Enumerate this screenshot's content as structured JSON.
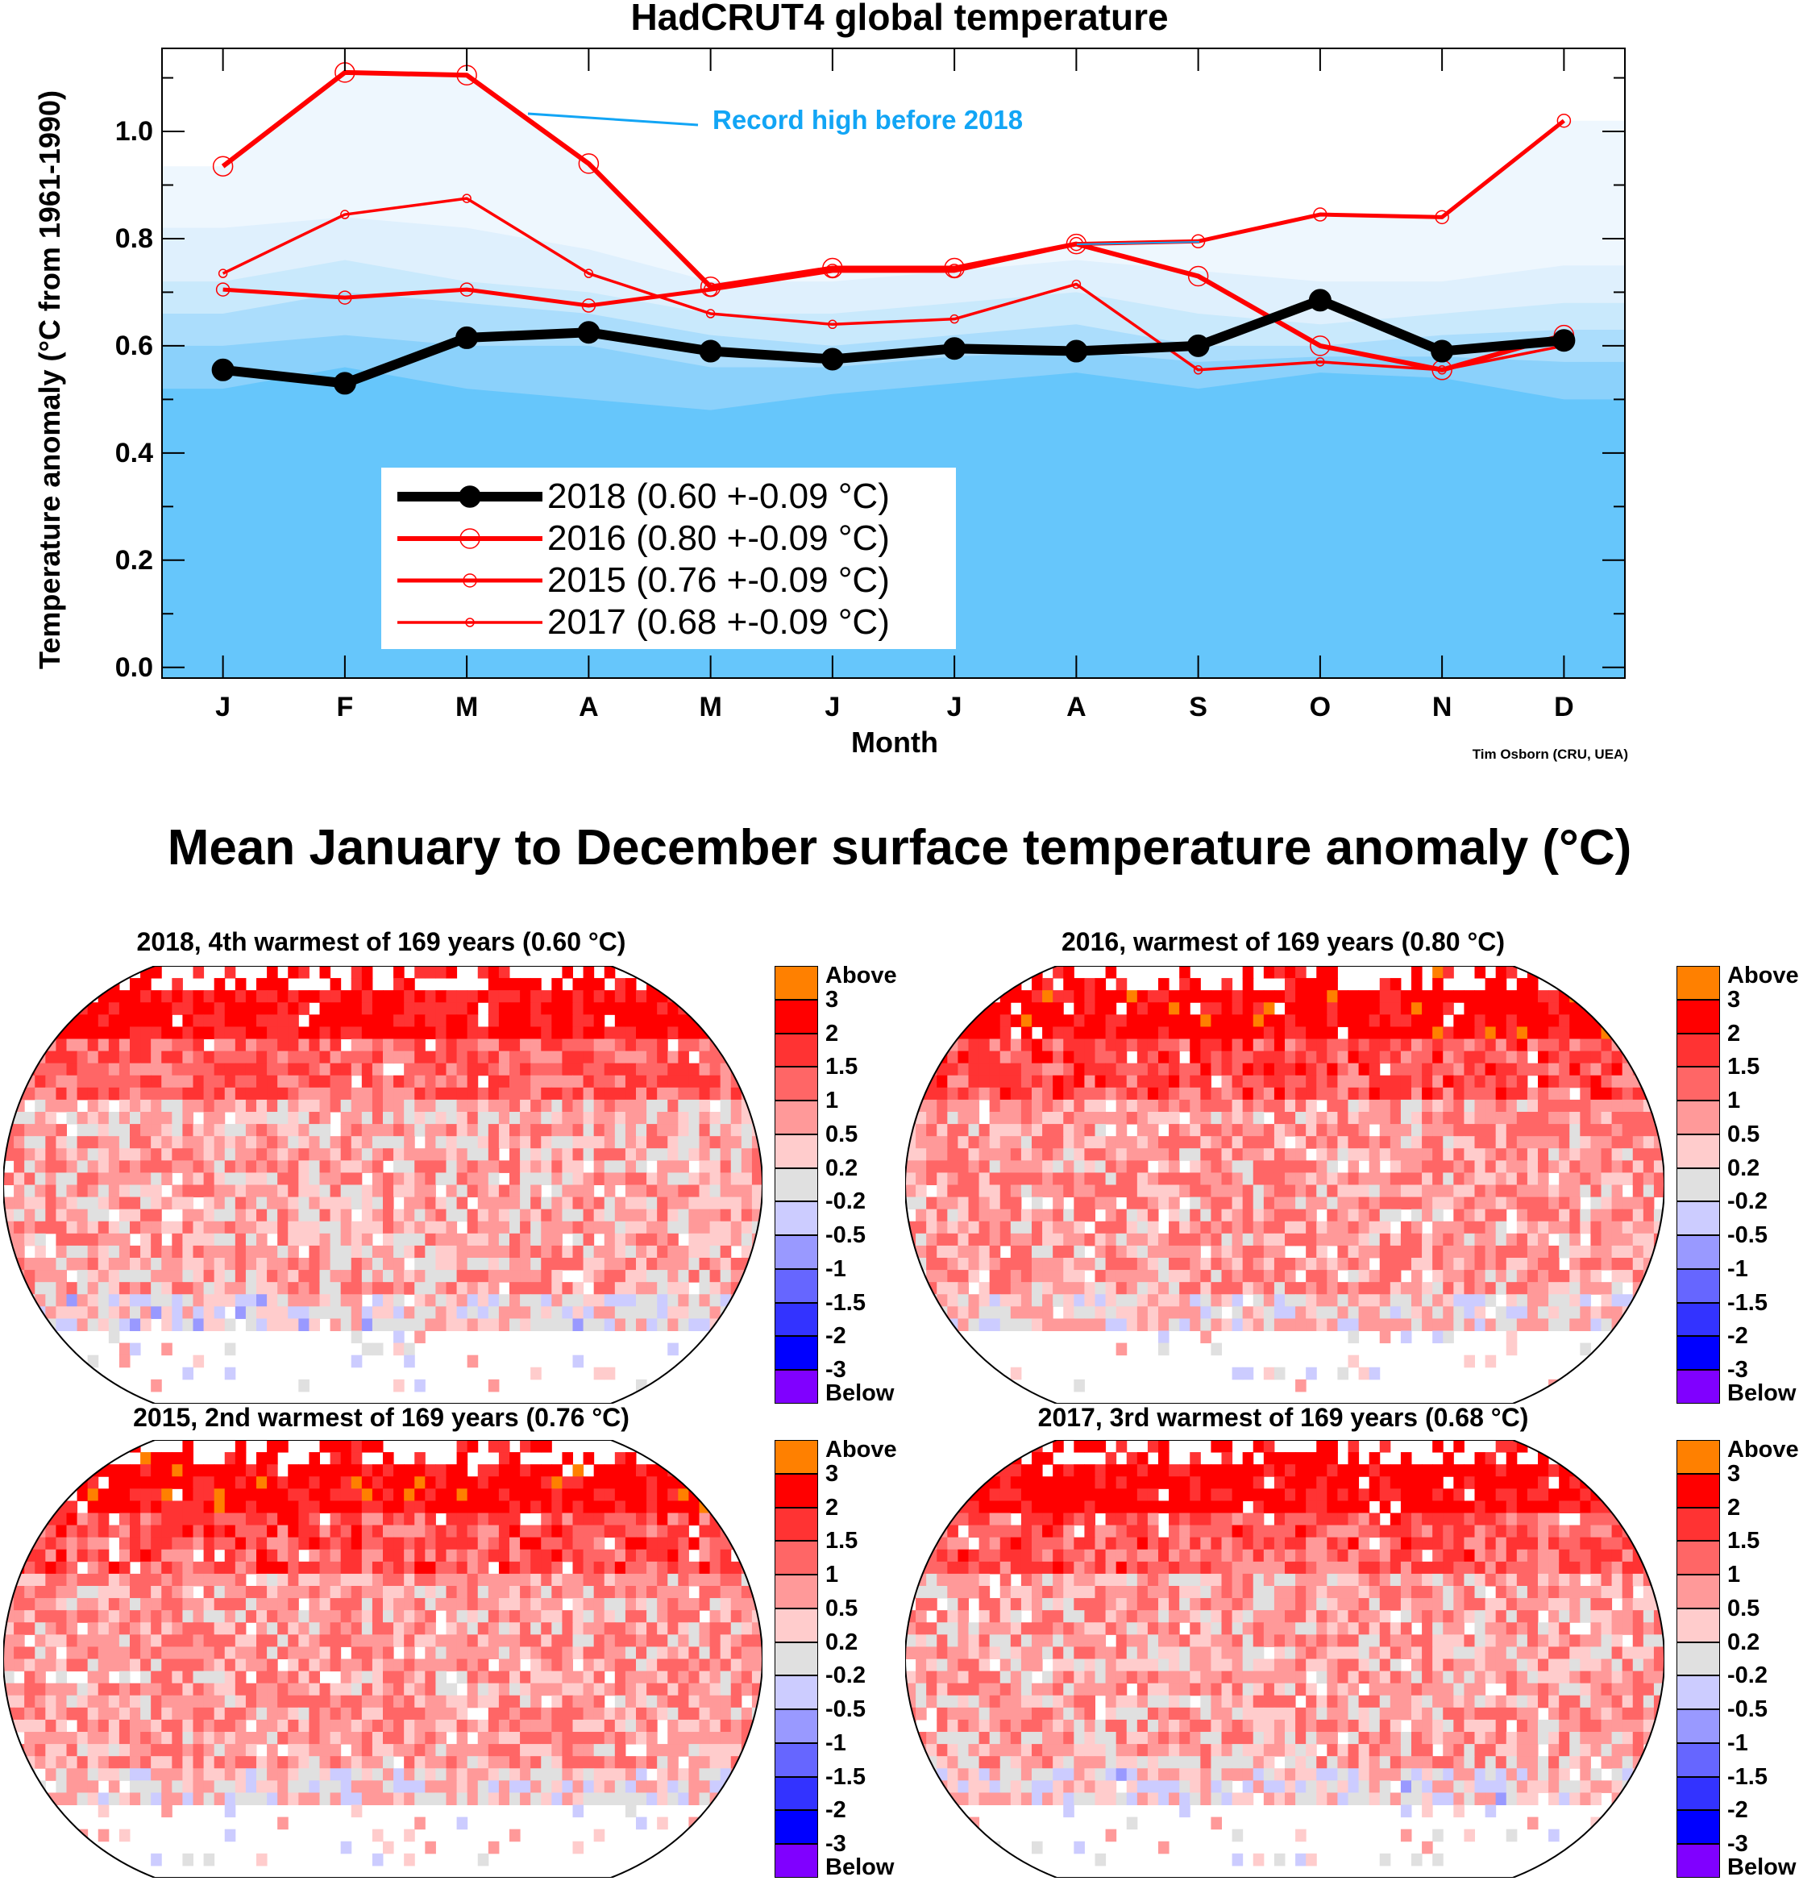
{
  "chart_data": {
    "type": "line",
    "title": "HadCRUT4 global temperature",
    "xlabel": "Month",
    "ylabel": "Temperature anomaly (°C from 1961-1990)",
    "ylim": [
      -0.02,
      1.155
    ],
    "xlim": [
      0.5,
      12.5
    ],
    "x_tick_labels": [
      "J",
      "F",
      "M",
      "A",
      "M",
      "J",
      "J",
      "A",
      "S",
      "O",
      "N",
      "D"
    ],
    "y_ticks": [
      0.0,
      0.2,
      0.4,
      0.6,
      0.8,
      1.0
    ],
    "y_tick_labels": [
      "0.0",
      "0.2",
      "0.4",
      "0.6",
      "0.8",
      "1.0"
    ],
    "credit": "Tim Osborn (CRU, UEA)",
    "annotation": "Record high before 2018",
    "legend_placement": "lower-left",
    "series": [
      {
        "name": "2018",
        "label": "2018 (0.60 +-0.09 °C)",
        "color": "#000000",
        "marker": "filled-circle",
        "values": [
          0.555,
          0.53,
          0.615,
          0.625,
          0.59,
          0.575,
          0.595,
          0.59,
          0.6,
          0.685,
          0.59,
          0.61
        ]
      },
      {
        "name": "2016",
        "label": "2016 (0.80 +-0.09 °C)",
        "color": "#ff0000",
        "marker": "open-circle-large",
        "values": [
          0.935,
          1.11,
          1.105,
          0.94,
          0.71,
          0.745,
          0.745,
          0.79,
          0.73,
          0.6,
          0.555,
          0.62
        ]
      },
      {
        "name": "2015",
        "label": "2015 (0.76 +-0.09 °C)",
        "color": "#ff0000",
        "marker": "open-circle-medium",
        "values": [
          0.705,
          0.69,
          0.705,
          0.675,
          0.705,
          0.74,
          0.74,
          0.79,
          0.795,
          0.845,
          0.84,
          1.02
        ]
      },
      {
        "name": "2017",
        "label": "2017 (0.68 +-0.09 °C)",
        "color": "#ff0000",
        "marker": "open-circle-small",
        "values": [
          0.735,
          0.845,
          0.875,
          0.735,
          0.66,
          0.64,
          0.65,
          0.715,
          0.555,
          0.57,
          0.555,
          0.6
        ]
      }
    ],
    "shading_bands": [
      {
        "name": "record-high-before-2018",
        "color": "#eef7fe",
        "values": [
          0.935,
          1.11,
          1.105,
          0.94,
          0.71,
          0.745,
          0.745,
          0.79,
          0.795,
          0.845,
          0.84,
          1.02
        ]
      },
      {
        "name": "band-2",
        "color": "#dff0fd",
        "values": [
          0.82,
          0.84,
          0.82,
          0.78,
          0.72,
          0.72,
          0.74,
          0.76,
          0.74,
          0.72,
          0.72,
          0.75
        ]
      },
      {
        "name": "band-3",
        "color": "#c9e9fc",
        "values": [
          0.72,
          0.76,
          0.72,
          0.7,
          0.66,
          0.66,
          0.68,
          0.7,
          0.66,
          0.64,
          0.66,
          0.68
        ]
      },
      {
        "name": "band-4",
        "color": "#abddfc",
        "values": [
          0.66,
          0.7,
          0.68,
          0.66,
          0.62,
          0.6,
          0.62,
          0.64,
          0.6,
          0.6,
          0.62,
          0.63
        ]
      },
      {
        "name": "band-5",
        "color": "#8bd1fb",
        "values": [
          0.6,
          0.62,
          0.6,
          0.6,
          0.56,
          0.56,
          0.58,
          0.59,
          0.57,
          0.58,
          0.58,
          0.57
        ]
      },
      {
        "name": "band-base",
        "color": "#66c6fb",
        "values": [
          0.52,
          0.56,
          0.52,
          0.5,
          0.48,
          0.51,
          0.53,
          0.55,
          0.52,
          0.55,
          0.54,
          0.5
        ]
      }
    ],
    "annotation_color": "#12a5f5"
  },
  "maps": {
    "title": "Mean January to December surface temperature anomaly (°C)",
    "panels": [
      {
        "title": "2018, 4th warmest of 169 years (0.60 °C)",
        "mean": 0.6
      },
      {
        "title": "2016, warmest of 169 years (0.80 °C)",
        "mean": 0.8
      },
      {
        "title": "2015, 2nd warmest of 169 years (0.76 °C)",
        "mean": 0.76
      },
      {
        "title": "2017, 3rd warmest of 169 years (0.68 °C)",
        "mean": 0.68
      }
    ],
    "colorbar": {
      "labels": [
        "Above",
        "3",
        "2",
        "1.5",
        "1",
        "0.5",
        "0.2",
        "-0.2",
        "-0.5",
        "-1",
        "-1.5",
        "-2",
        "-3",
        "Below"
      ],
      "colors": [
        "#ff8000",
        "#ff0000",
        "#ff3333",
        "#ff6666",
        "#ff9999",
        "#ffcccc",
        "#e0e0e0",
        "#ccccff",
        "#9999ff",
        "#6666ff",
        "#3333ff",
        "#0000ff",
        "#8000ff"
      ],
      "thresholds": [
        3,
        2,
        1.5,
        1,
        0.5,
        0.2,
        -0.2,
        -0.5,
        -1,
        -1.5,
        -2,
        -3
      ]
    }
  }
}
